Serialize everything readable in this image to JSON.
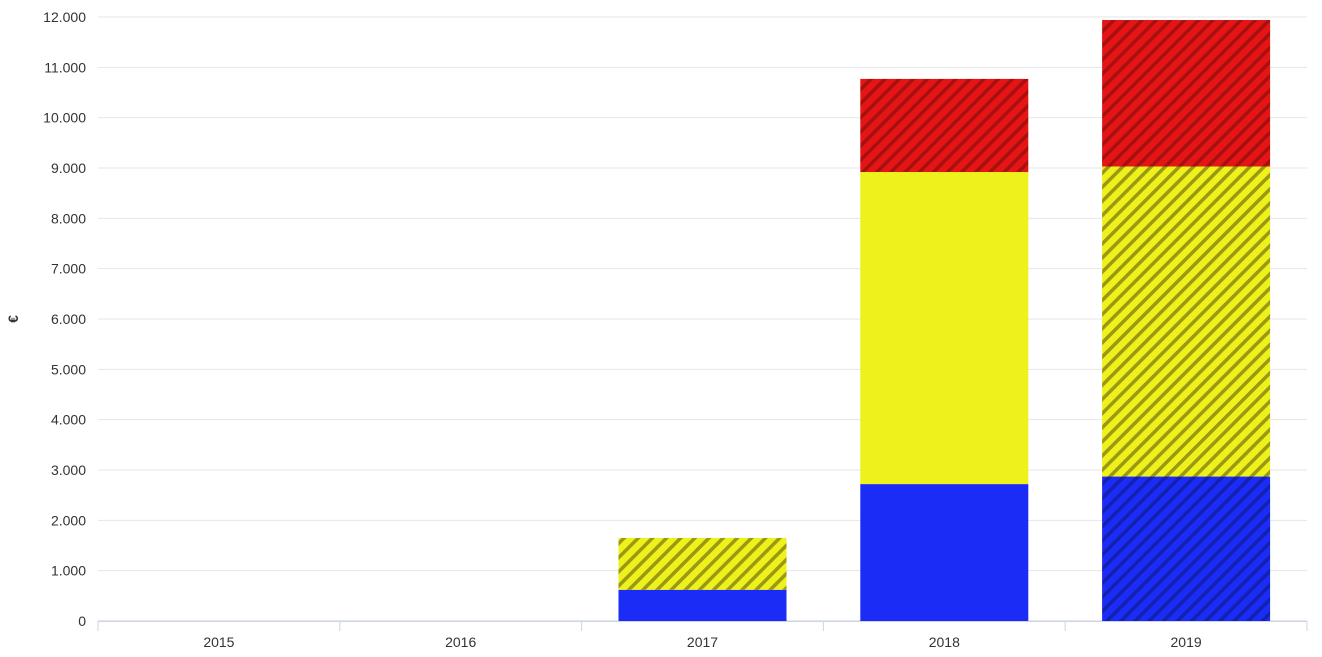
{
  "chart_data": {
    "type": "bar",
    "stacked": true,
    "categories": [
      "2015",
      "2016",
      "2017",
      "2018",
      "2019"
    ],
    "ylabel": "€",
    "ylim": [
      0,
      12000
    ],
    "yticks": [
      0,
      1000,
      2000,
      3000,
      4000,
      5000,
      6000,
      7000,
      8000,
      9000,
      10000,
      11000,
      12000
    ],
    "ytick_labels": [
      "0",
      "1.000",
      "2.000",
      "3.000",
      "4.000",
      "5.000",
      "6.000",
      "7.000",
      "8.000",
      "9.000",
      "10.000",
      "11.000",
      "12.000"
    ],
    "grid": true,
    "legend": "none",
    "series": [
      {
        "color": "#1a2cf5",
        "stripe_color": "#1420b0",
        "values": [
          0,
          0,
          620,
          2720,
          2870
        ],
        "hatched": [
          false,
          false,
          false,
          false,
          true
        ]
      },
      {
        "color": "#eef11b",
        "stripe_color": "#9a9a12",
        "values": [
          0,
          0,
          1030,
          6200,
          6160
        ],
        "hatched": [
          false,
          false,
          true,
          false,
          true
        ]
      },
      {
        "color": "#e51515",
        "stripe_color": "#a81010",
        "values": [
          0,
          0,
          0,
          1850,
          2910
        ],
        "hatched": [
          false,
          false,
          false,
          true,
          true
        ]
      }
    ]
  }
}
